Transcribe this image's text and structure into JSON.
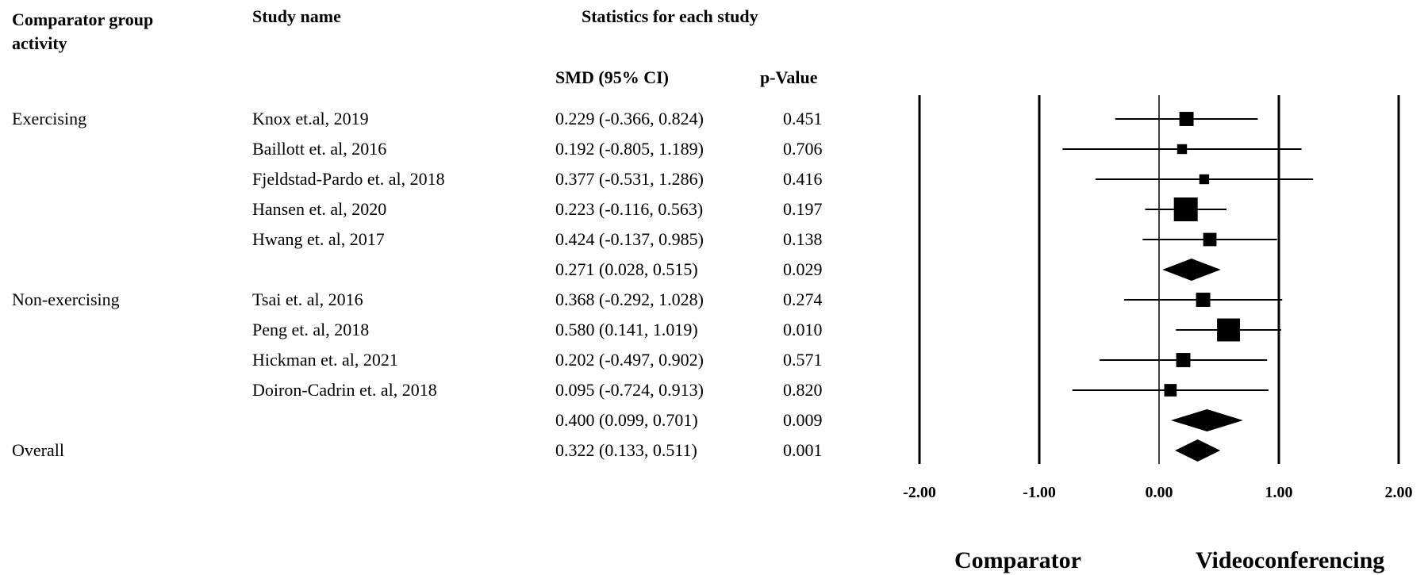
{
  "headers": {
    "group": "Comparator group activity",
    "study": "Study name",
    "stats": "Statistics for each study",
    "smd": "SMD (95% CI)",
    "p": "p-Value"
  },
  "rows": [
    {
      "group": "Exercising",
      "study": "Knox et.al, 2019",
      "smd_ci": "0.229 (-0.366, 0.824)",
      "p": "0.451"
    },
    {
      "group": "",
      "study": "Baillott et. al, 2016",
      "smd_ci": "0.192 (-0.805, 1.189)",
      "p": "0.706"
    },
    {
      "group": "",
      "study": "Fjeldstad-Pardo et. al, 2018",
      "smd_ci": "0.377 (-0.531, 1.286)",
      "p": "0.416"
    },
    {
      "group": "",
      "study": "Hansen et. al, 2020",
      "smd_ci": "0.223 (-0.116, 0.563)",
      "p": "0.197"
    },
    {
      "group": "",
      "study": "Hwang et. al, 2017",
      "smd_ci": "0.424 (-0.137, 0.985)",
      "p": "0.138"
    },
    {
      "group": "",
      "study": "",
      "smd_ci": "0.271 (0.028, 0.515)",
      "p": "0.029"
    },
    {
      "group": "Non-exercising",
      "study": "Tsai et. al, 2016",
      "smd_ci": "0.368 (-0.292, 1.028)",
      "p": "0.274"
    },
    {
      "group": "",
      "study": "Peng et. al, 2018",
      "smd_ci": "0.580 (0.141, 1.019)",
      "p": "0.010"
    },
    {
      "group": "",
      "study": "Hickman et. al, 2021",
      "smd_ci": "0.202 (-0.497, 0.902)",
      "p": "0.571"
    },
    {
      "group": "",
      "study": "Doiron-Cadrin et. al, 2018",
      "smd_ci": "0.095 (-0.724, 0.913)",
      "p": "0.820"
    },
    {
      "group": "",
      "study": "",
      "smd_ci": "0.400 (0.099, 0.701)",
      "p": "0.009"
    },
    {
      "group": "Overall",
      "study": "",
      "smd_ci": "0.322 (0.133, 0.511)",
      "p": "0.001"
    }
  ],
  "chart_data": {
    "type": "forest",
    "xlim": [
      -2.0,
      2.0
    ],
    "ticks": [
      -2.0,
      -1.0,
      0.0,
      1.0,
      2.0
    ],
    "tick_labels": [
      "-2.00",
      "-1.00",
      "0.00",
      "1.00",
      "2.00"
    ],
    "vertical_lines": [
      -2.0,
      -1.0,
      1.0,
      2.0
    ],
    "zero_line": 0.0,
    "xlabel_left": "Comparator",
    "xlabel_right": "Videoconferencing",
    "points": [
      {
        "kind": "study",
        "est": 0.229,
        "lo": -0.366,
        "hi": 0.824,
        "weight": 0.45
      },
      {
        "kind": "study",
        "est": 0.192,
        "lo": -0.805,
        "hi": 1.189,
        "weight": 0.2
      },
      {
        "kind": "study",
        "est": 0.377,
        "lo": -0.531,
        "hi": 1.286,
        "weight": 0.2
      },
      {
        "kind": "study",
        "est": 0.223,
        "lo": -0.116,
        "hi": 0.563,
        "weight": 1.0
      },
      {
        "kind": "study",
        "est": 0.424,
        "lo": -0.137,
        "hi": 0.985,
        "weight": 0.4
      },
      {
        "kind": "summary",
        "est": 0.271,
        "lo": 0.028,
        "hi": 0.515
      },
      {
        "kind": "study",
        "est": 0.368,
        "lo": -0.292,
        "hi": 1.028,
        "weight": 0.45
      },
      {
        "kind": "study",
        "est": 0.58,
        "lo": 0.141,
        "hi": 1.019,
        "weight": 0.95
      },
      {
        "kind": "study",
        "est": 0.202,
        "lo": -0.497,
        "hi": 0.902,
        "weight": 0.45
      },
      {
        "kind": "study",
        "est": 0.095,
        "lo": -0.724,
        "hi": 0.913,
        "weight": 0.35
      },
      {
        "kind": "summary",
        "est": 0.4,
        "lo": 0.099,
        "hi": 0.701
      },
      {
        "kind": "summary",
        "est": 0.322,
        "lo": 0.133,
        "hi": 0.511
      }
    ]
  }
}
